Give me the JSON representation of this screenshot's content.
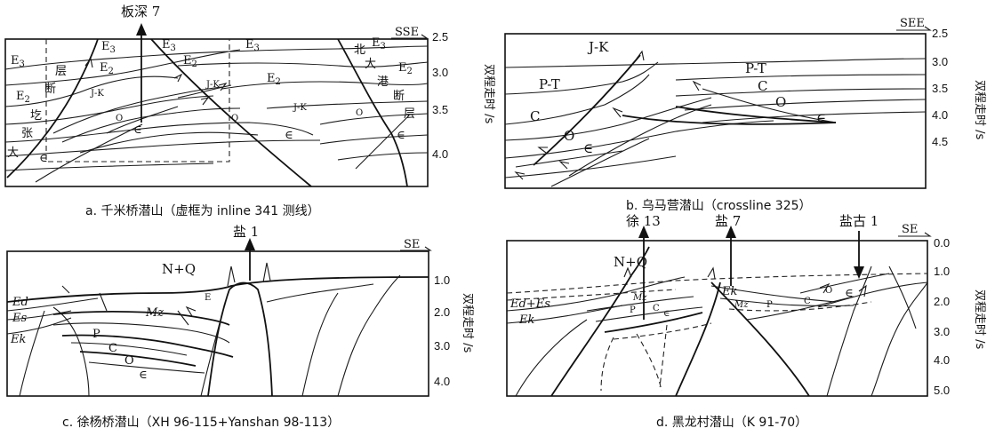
{
  "panels": [
    {
      "id": "a",
      "caption": "a. 千米桥潜山（虚框为 inline 341 测线）",
      "direction": "SSE",
      "well": "板深 7",
      "ticks": [
        "2.5",
        "3.0",
        "3.5",
        "4.0"
      ],
      "axis_label": "双程走时 /s",
      "units": [
        "E3",
        "E2",
        "J-K",
        "O",
        "∈"
      ],
      "faults": [
        "层",
        "断",
        "圪",
        "张",
        "大",
        "北",
        "大",
        "港",
        "断",
        "层"
      ]
    },
    {
      "id": "b",
      "caption": "b. 乌马营潜山（crossline 325）",
      "direction": "SEE",
      "ticks": [
        "2.5",
        "3.0",
        "3.5",
        "4.0",
        "4.5"
      ],
      "axis_label": "双程走时 /s",
      "units": [
        "J-K",
        "P-T",
        "P-T",
        "C",
        "C",
        "O",
        "O",
        "∈",
        "∈"
      ]
    },
    {
      "id": "c",
      "caption": "c. 徐杨桥潜山（XH 96-115+Yanshan 98-113）",
      "direction": "SE",
      "well": "盐 1",
      "ticks": [
        "1.0",
        "2.0",
        "3.0",
        "4.0"
      ],
      "axis_label": "双程走时 /s",
      "units": [
        "N+Q",
        "Ed",
        "Es",
        "Ek",
        "E",
        "Mz",
        "P",
        "C",
        "O",
        "∈"
      ]
    },
    {
      "id": "d",
      "caption": "d. 黑龙村潜山（K 91-70）",
      "direction": "SE",
      "wells": [
        "徐 13",
        "盐 7",
        "盐古 1"
      ],
      "ticks": [
        "0.0",
        "1.0",
        "2.0",
        "3.0",
        "4.0",
        "5.0"
      ],
      "axis_label": "双程走时 /s",
      "units": [
        "N+Q",
        "Ed+Es",
        "Ek",
        "Mz",
        "P",
        "C",
        "∈",
        "Ek",
        "Mz",
        "P",
        "C",
        "O",
        "∈"
      ]
    }
  ]
}
